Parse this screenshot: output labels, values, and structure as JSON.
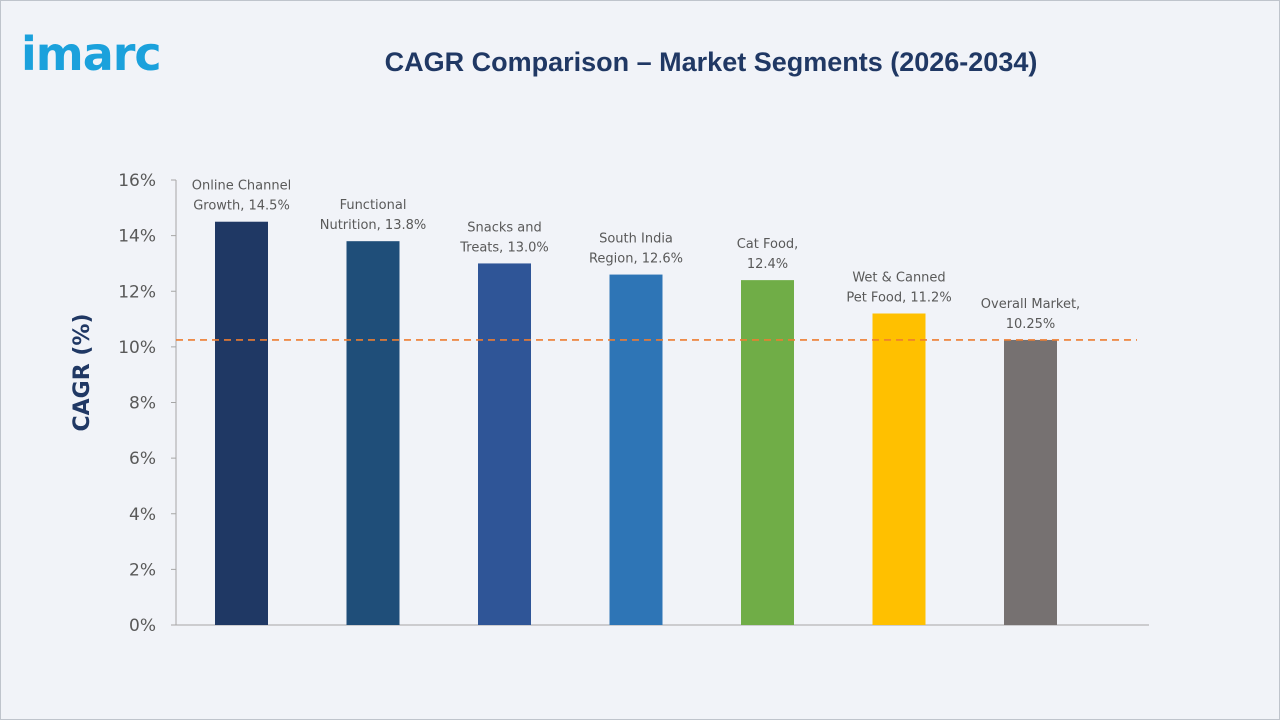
{
  "logo": {
    "text": "imarc",
    "color": "#1ba1dc"
  },
  "header": {
    "title": "CAGR Comparison – Market Segments (2026-2034)",
    "title_color": "#203864"
  },
  "colors": {
    "background": "#f1f3f8",
    "axis": "#a6a6a6",
    "reference_line": "#ed7d31",
    "label_text": "#595959"
  },
  "chart_data": {
    "type": "bar",
    "title": "CAGR Comparison – Market Segments (2026-2034)",
    "xlabel": "",
    "ylabel": "CAGR (%)",
    "ylim": [
      0,
      16
    ],
    "yticks": [
      0,
      2,
      4,
      6,
      8,
      10,
      12,
      14,
      16
    ],
    "ytick_labels": [
      "0%",
      "2%",
      "4%",
      "6%",
      "8%",
      "10%",
      "12%",
      "14%",
      "16%"
    ],
    "grid": false,
    "legend": "none",
    "categories": [
      "Online Channel Growth",
      "Functional Nutrition",
      "Snacks and Treats",
      "South India Region",
      "Cat Food",
      "Wet & Canned Pet Food",
      "Overall Market"
    ],
    "values": [
      14.5,
      13.8,
      13.0,
      12.6,
      12.4,
      11.2,
      10.25
    ],
    "data_labels": [
      [
        "Online Channel",
        "Growth, 14.5%"
      ],
      [
        "Functional",
        "Nutrition, 13.8%"
      ],
      [
        "Snacks and",
        "Treats, 13.0%"
      ],
      [
        "South India",
        "Region, 12.6%"
      ],
      [
        "Cat Food,",
        "12.4%"
      ],
      [
        "Wet & Canned",
        "Pet Food, 11.2%"
      ],
      [
        "Overall Market,",
        "10.25%"
      ]
    ],
    "bar_colors": [
      "#1f3864",
      "#1f4e79",
      "#2f5597",
      "#2e75b6",
      "#70ad47",
      "#ffc000",
      "#767171"
    ],
    "reference_line": {
      "value": 10.25,
      "style": "dashed",
      "color": "#ed7d31"
    }
  }
}
